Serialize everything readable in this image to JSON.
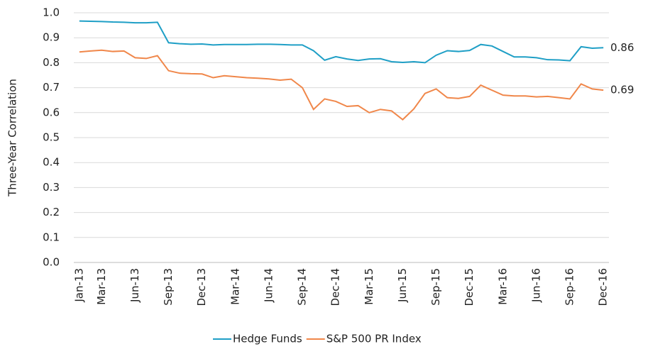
{
  "chart_data": {
    "type": "line",
    "y_label": "Three-Year Correlation",
    "categories": [
      "Jan-13",
      null,
      "Mar-13",
      null,
      null,
      "Jun-13",
      null,
      null,
      "Sep-13",
      null,
      null,
      "Dec-13",
      null,
      null,
      "Mar-14",
      null,
      null,
      "Jun-14",
      null,
      null,
      "Sep-14",
      null,
      null,
      "Dec-14",
      null,
      null,
      "Mar-15",
      null,
      null,
      "Jun-15",
      null,
      null,
      "Sep-15",
      null,
      null,
      "Dec-15",
      null,
      null,
      "Mar-16",
      null,
      null,
      "Jun-16",
      null,
      null,
      "Sep-16",
      null,
      null,
      "Dec-16"
    ],
    "series": [
      {
        "name": "Hedge Funds",
        "color": "#1f9fc6",
        "values": [
          0.967,
          0.966,
          0.965,
          0.963,
          0.962,
          0.96,
          0.96,
          0.962,
          0.88,
          0.876,
          0.874,
          0.875,
          0.871,
          0.873,
          0.873,
          0.873,
          0.874,
          0.874,
          0.873,
          0.871,
          0.871,
          0.848,
          0.81,
          0.824,
          0.815,
          0.809,
          0.815,
          0.816,
          0.804,
          0.801,
          0.804,
          0.8,
          0.83,
          0.848,
          0.845,
          0.849,
          0.873,
          0.867,
          0.845,
          0.823,
          0.823,
          0.82,
          0.812,
          0.811,
          0.808,
          0.864,
          0.858,
          0.86
        ]
      },
      {
        "name": "S&P 500 PR Index",
        "color": "#f0874a",
        "values": [
          0.843,
          0.847,
          0.85,
          0.845,
          0.847,
          0.82,
          0.817,
          0.828,
          0.768,
          0.758,
          0.756,
          0.755,
          0.74,
          0.748,
          0.744,
          0.74,
          0.738,
          0.735,
          0.73,
          0.734,
          0.7,
          0.613,
          0.655,
          0.645,
          0.625,
          0.628,
          0.6,
          0.613,
          0.607,
          0.572,
          0.615,
          0.677,
          0.695,
          0.66,
          0.657,
          0.665,
          0.71,
          0.69,
          0.67,
          0.667,
          0.667,
          0.663,
          0.665,
          0.66,
          0.655,
          0.715,
          0.695,
          0.69
        ]
      }
    ],
    "ylim": [
      0,
      1
    ],
    "yticks": [
      {
        "value": 0,
        "label": "0.0"
      },
      0.1,
      0.2,
      0.3,
      0.4,
      0.5,
      0.6,
      0.7,
      0.8,
      0.9,
      {
        "value": 1,
        "label": "1.0"
      }
    ],
    "grid": true,
    "legend": "bottom"
  }
}
